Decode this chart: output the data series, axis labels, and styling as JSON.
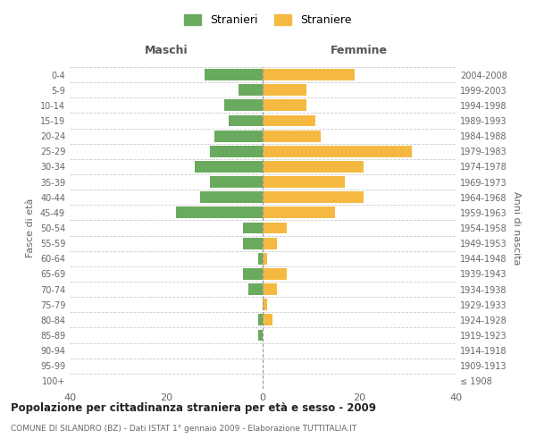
{
  "age_groups": [
    "100+",
    "95-99",
    "90-94",
    "85-89",
    "80-84",
    "75-79",
    "70-74",
    "65-69",
    "60-64",
    "55-59",
    "50-54",
    "45-49",
    "40-44",
    "35-39",
    "30-34",
    "25-29",
    "20-24",
    "15-19",
    "10-14",
    "5-9",
    "0-4"
  ],
  "birth_years": [
    "≤ 1908",
    "1909-1913",
    "1914-1918",
    "1919-1923",
    "1924-1928",
    "1929-1933",
    "1934-1938",
    "1939-1943",
    "1944-1948",
    "1949-1953",
    "1954-1958",
    "1959-1963",
    "1964-1968",
    "1969-1973",
    "1974-1978",
    "1979-1983",
    "1984-1988",
    "1989-1993",
    "1994-1998",
    "1999-2003",
    "2004-2008"
  ],
  "males": [
    0,
    0,
    0,
    1,
    1,
    0,
    3,
    4,
    1,
    4,
    4,
    18,
    13,
    11,
    14,
    11,
    10,
    7,
    8,
    5,
    12
  ],
  "females": [
    0,
    0,
    0,
    0,
    2,
    1,
    3,
    5,
    1,
    3,
    5,
    15,
    21,
    17,
    21,
    31,
    12,
    11,
    9,
    9,
    19
  ],
  "male_color": "#6aaa5e",
  "female_color": "#f5b942",
  "background_color": "#ffffff",
  "grid_color": "#cccccc",
  "title": "Popolazione per cittadinanza straniera per età e sesso - 2009",
  "subtitle": "COMUNE DI SILANDRO (BZ) - Dati ISTAT 1° gennaio 2009 - Elaborazione TUTTITALIA.IT",
  "xlabel_left": "Maschi",
  "xlabel_right": "Femmine",
  "ylabel_left": "Fasce di età",
  "ylabel_right": "Anni di nascita",
  "legend_male": "Stranieri",
  "legend_female": "Straniere",
  "xlim": 40
}
